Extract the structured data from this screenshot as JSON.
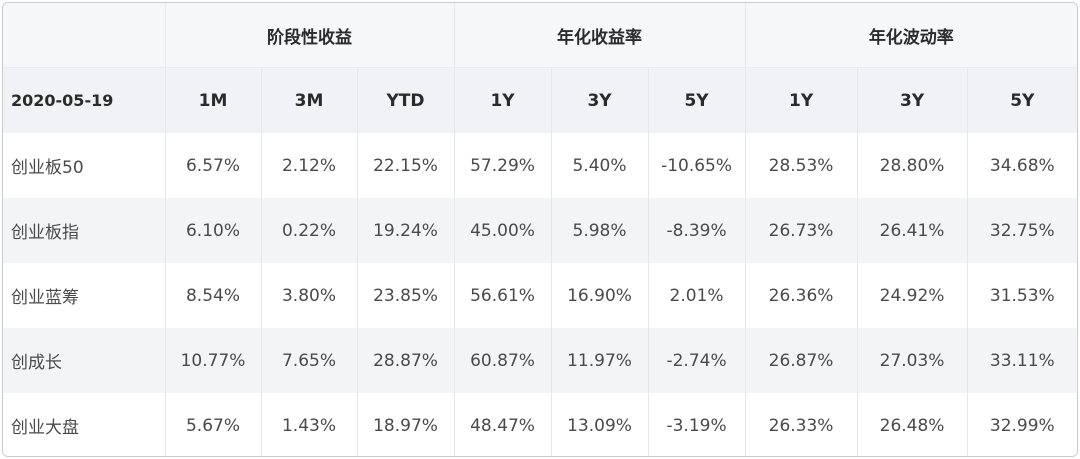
{
  "table": {
    "corner": "",
    "date": "2020-05-19",
    "groups": [
      "阶段性收益",
      "年化收益率",
      "年化波动率"
    ],
    "periods": [
      "1M",
      "3M",
      "YTD",
      "1Y",
      "3Y",
      "5Y",
      "1Y",
      "3Y",
      "5Y"
    ],
    "rows": [
      {
        "name": "创业板50",
        "values": [
          "6.57%",
          "2.12%",
          "22.15%",
          "57.29%",
          "5.40%",
          "-10.65%",
          "28.53%",
          "28.80%",
          "34.68%"
        ]
      },
      {
        "name": "创业板指",
        "values": [
          "6.10%",
          "0.22%",
          "19.24%",
          "45.00%",
          "5.98%",
          "-8.39%",
          "26.73%",
          "26.41%",
          "32.75%"
        ]
      },
      {
        "name": "创业蓝筹",
        "values": [
          "8.54%",
          "3.80%",
          "23.85%",
          "56.61%",
          "16.90%",
          "2.01%",
          "26.36%",
          "24.92%",
          "31.53%"
        ]
      },
      {
        "name": "创成长",
        "values": [
          "10.77%",
          "7.65%",
          "28.87%",
          "60.87%",
          "11.97%",
          "-2.74%",
          "26.87%",
          "27.03%",
          "33.11%"
        ]
      },
      {
        "name": "创业大盘",
        "values": [
          "5.67%",
          "1.43%",
          "18.97%",
          "48.47%",
          "13.09%",
          "-3.19%",
          "26.33%",
          "26.48%",
          "32.99%"
        ]
      }
    ]
  }
}
